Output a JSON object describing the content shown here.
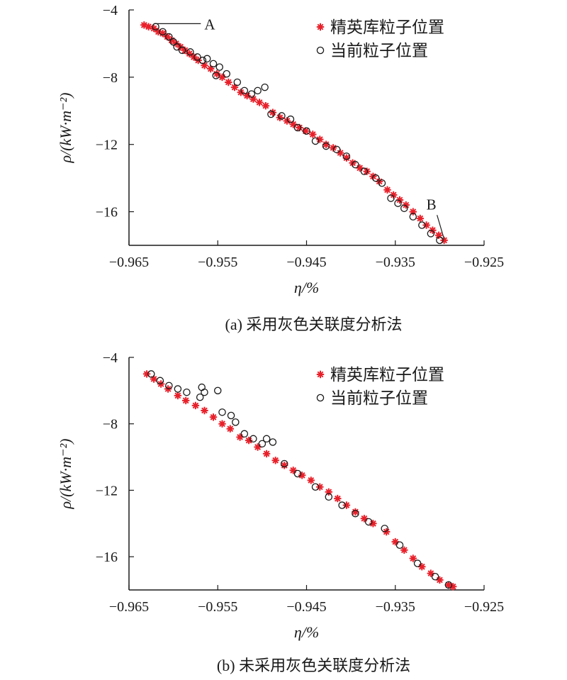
{
  "figure": {
    "panels": [
      {
        "caption": "(a) 采用灰色关联度分析法",
        "annotations": [
          {
            "label": "A",
            "target": [
              -0.9625,
              -4.9
            ]
          },
          {
            "label": "B",
            "target": [
              -0.9295,
              -17.8
            ]
          }
        ]
      },
      {
        "caption": "(b) 未采用灰色关联度分析法",
        "annotations": []
      }
    ]
  },
  "chart_data": [
    {
      "type": "scatter",
      "title": "",
      "xlabel": "η/%",
      "ylabel": "ρ/(kW·m⁻²)",
      "xlim": [
        -0.965,
        -0.925
      ],
      "ylim": [
        -18,
        -4
      ],
      "xticks": [
        -0.965,
        -0.955,
        -0.945,
        -0.935,
        -0.925
      ],
      "xtick_labels": [
        "−0.965",
        "−0.955",
        "−0.945",
        "−0.935",
        "−0.925"
      ],
      "yticks": [
        -4,
        -8,
        -12,
        -16
      ],
      "ytick_labels": [
        "−4",
        "−8",
        "−12",
        "−16"
      ],
      "legend": {
        "position": "top-right",
        "entries": [
          "精英库粒子位置",
          "当前粒子位置"
        ]
      },
      "series": [
        {
          "name": "精英库粒子位置",
          "marker": "asterisk",
          "color": "#e8202a",
          "points": [
            [
              -0.9633,
              -4.9
            ],
            [
              -0.9628,
              -5.0
            ],
            [
              -0.9622,
              -5.1
            ],
            [
              -0.9617,
              -5.3
            ],
            [
              -0.9612,
              -5.4
            ],
            [
              -0.9607,
              -5.6
            ],
            [
              -0.9602,
              -5.8
            ],
            [
              -0.9597,
              -6.0
            ],
            [
              -0.9592,
              -6.2
            ],
            [
              -0.9587,
              -6.4
            ],
            [
              -0.9582,
              -6.6
            ],
            [
              -0.9577,
              -6.8
            ],
            [
              -0.9572,
              -7.0
            ],
            [
              -0.9565,
              -7.3
            ],
            [
              -0.9558,
              -7.5
            ],
            [
              -0.9551,
              -7.8
            ],
            [
              -0.9545,
              -8.0
            ],
            [
              -0.9538,
              -8.3
            ],
            [
              -0.9531,
              -8.6
            ],
            [
              -0.9524,
              -8.9
            ],
            [
              -0.9517,
              -9.1
            ],
            [
              -0.951,
              -9.3
            ],
            [
              -0.9503,
              -9.5
            ],
            [
              -0.9496,
              -9.7
            ],
            [
              -0.9488,
              -10.1
            ],
            [
              -0.948,
              -10.4
            ],
            [
              -0.9472,
              -10.6
            ],
            [
              -0.9465,
              -10.8
            ],
            [
              -0.9458,
              -11.0
            ],
            [
              -0.9451,
              -11.2
            ],
            [
              -0.9443,
              -11.4
            ],
            [
              -0.9435,
              -11.7
            ],
            [
              -0.9428,
              -12.0
            ],
            [
              -0.942,
              -12.2
            ],
            [
              -0.9412,
              -12.5
            ],
            [
              -0.9405,
              -12.8
            ],
            [
              -0.9398,
              -13.1
            ],
            [
              -0.939,
              -13.4
            ],
            [
              -0.9382,
              -13.6
            ],
            [
              -0.9375,
              -13.9
            ],
            [
              -0.9368,
              -14.2
            ],
            [
              -0.9359,
              -14.7
            ],
            [
              -0.9352,
              -15.0
            ],
            [
              -0.9345,
              -15.3
            ],
            [
              -0.9338,
              -15.6
            ],
            [
              -0.933,
              -16.0
            ],
            [
              -0.9322,
              -16.4
            ],
            [
              -0.9315,
              -16.8
            ],
            [
              -0.9308,
              -17.1
            ],
            [
              -0.9301,
              -17.4
            ],
            [
              -0.9295,
              -17.7
            ]
          ]
        },
        {
          "name": "当前粒子位置",
          "marker": "circle",
          "color": "#1a1a1a",
          "points": [
            [
              -0.962,
              -5.0
            ],
            [
              -0.9612,
              -5.3
            ],
            [
              -0.9605,
              -5.6
            ],
            [
              -0.96,
              -5.9
            ],
            [
              -0.9596,
              -6.2
            ],
            [
              -0.959,
              -6.4
            ],
            [
              -0.9581,
              -6.5
            ],
            [
              -0.9573,
              -6.8
            ],
            [
              -0.9567,
              -7.0
            ],
            [
              -0.9562,
              -6.9
            ],
            [
              -0.9555,
              -7.2
            ],
            [
              -0.9548,
              -7.4
            ],
            [
              -0.9552,
              -7.9
            ],
            [
              -0.954,
              -7.8
            ],
            [
              -0.9528,
              -8.3
            ],
            [
              -0.952,
              -8.8
            ],
            [
              -0.9512,
              -9.0
            ],
            [
              -0.9505,
              -8.8
            ],
            [
              -0.9497,
              -8.6
            ],
            [
              -0.949,
              -10.2
            ],
            [
              -0.9478,
              -10.3
            ],
            [
              -0.9468,
              -10.5
            ],
            [
              -0.946,
              -11.0
            ],
            [
              -0.945,
              -11.2
            ],
            [
              -0.944,
              -11.8
            ],
            [
              -0.9428,
              -12.1
            ],
            [
              -0.9416,
              -12.3
            ],
            [
              -0.9405,
              -12.7
            ],
            [
              -0.9395,
              -13.2
            ],
            [
              -0.9385,
              -13.6
            ],
            [
              -0.9372,
              -14.0
            ],
            [
              -0.9365,
              -14.3
            ],
            [
              -0.9355,
              -15.2
            ],
            [
              -0.9347,
              -15.5
            ],
            [
              -0.934,
              -15.8
            ],
            [
              -0.933,
              -16.3
            ],
            [
              -0.932,
              -16.8
            ],
            [
              -0.931,
              -17.3
            ],
            [
              -0.93,
              -17.7
            ]
          ]
        }
      ]
    },
    {
      "type": "scatter",
      "title": "",
      "xlabel": "η/%",
      "ylabel": "ρ/(kW·m⁻²)",
      "xlim": [
        -0.965,
        -0.925
      ],
      "ylim": [
        -18,
        -4
      ],
      "xticks": [
        -0.965,
        -0.955,
        -0.945,
        -0.935,
        -0.925
      ],
      "xtick_labels": [
        "−0.965",
        "−0.955",
        "−0.945",
        "−0.935",
        "−0.925"
      ],
      "yticks": [
        -4,
        -8,
        -12,
        -16
      ],
      "ytick_labels": [
        "−4",
        "−8",
        "−12",
        "−16"
      ],
      "legend": {
        "position": "top-right",
        "entries": [
          "精英库粒子位置",
          "当前粒子位置"
        ]
      },
      "series": [
        {
          "name": "精英库粒子位置",
          "marker": "asterisk",
          "color": "#e8202a",
          "points": [
            [
              -0.963,
              -5.0
            ],
            [
              -0.9622,
              -5.3
            ],
            [
              -0.9614,
              -5.6
            ],
            [
              -0.9606,
              -5.9
            ],
            [
              -0.9595,
              -6.3
            ],
            [
              -0.9586,
              -6.6
            ],
            [
              -0.9575,
              -6.9
            ],
            [
              -0.9565,
              -7.2
            ],
            [
              -0.9555,
              -7.6
            ],
            [
              -0.9545,
              -8.0
            ],
            [
              -0.9536,
              -8.3
            ],
            [
              -0.9525,
              -8.8
            ],
            [
              -0.9515,
              -9.0
            ],
            [
              -0.9505,
              -9.4
            ],
            [
              -0.9495,
              -9.8
            ],
            [
              -0.9485,
              -10.2
            ],
            [
              -0.9475,
              -10.5
            ],
            [
              -0.9465,
              -10.8
            ],
            [
              -0.9455,
              -11.1
            ],
            [
              -0.9445,
              -11.4
            ],
            [
              -0.9435,
              -11.8
            ],
            [
              -0.9425,
              -12.1
            ],
            [
              -0.9415,
              -12.5
            ],
            [
              -0.9405,
              -12.9
            ],
            [
              -0.9395,
              -13.3
            ],
            [
              -0.9385,
              -13.7
            ],
            [
              -0.9375,
              -14.0
            ],
            [
              -0.936,
              -14.5
            ],
            [
              -0.935,
              -15.1
            ],
            [
              -0.934,
              -15.6
            ],
            [
              -0.933,
              -16.1
            ],
            [
              -0.932,
              -16.6
            ],
            [
              -0.931,
              -17.0
            ],
            [
              -0.93,
              -17.4
            ],
            [
              -0.929,
              -17.7
            ],
            [
              -0.9285,
              -17.8
            ]
          ]
        },
        {
          "name": "当前粒子位置",
          "marker": "circle",
          "color": "#1a1a1a",
          "points": [
            [
              -0.9625,
              -5.0
            ],
            [
              -0.9615,
              -5.4
            ],
            [
              -0.9605,
              -5.7
            ],
            [
              -0.9595,
              -5.9
            ],
            [
              -0.9585,
              -6.1
            ],
            [
              -0.957,
              -6.4
            ],
            [
              -0.9568,
              -5.8
            ],
            [
              -0.9565,
              -6.1
            ],
            [
              -0.955,
              -6.0
            ],
            [
              -0.9545,
              -7.3
            ],
            [
              -0.9535,
              -7.5
            ],
            [
              -0.953,
              -7.9
            ],
            [
              -0.952,
              -8.6
            ],
            [
              -0.951,
              -8.9
            ],
            [
              -0.95,
              -9.2
            ],
            [
              -0.9495,
              -8.9
            ],
            [
              -0.9488,
              -9.1
            ],
            [
              -0.9475,
              -10.4
            ],
            [
              -0.946,
              -11.0
            ],
            [
              -0.944,
              -11.8
            ],
            [
              -0.9425,
              -12.4
            ],
            [
              -0.941,
              -12.9
            ],
            [
              -0.9395,
              -13.4
            ],
            [
              -0.938,
              -13.9
            ],
            [
              -0.9362,
              -14.3
            ],
            [
              -0.9345,
              -15.3
            ],
            [
              -0.9325,
              -16.4
            ],
            [
              -0.9305,
              -17.2
            ],
            [
              -0.929,
              -17.7
            ]
          ]
        }
      ]
    }
  ]
}
